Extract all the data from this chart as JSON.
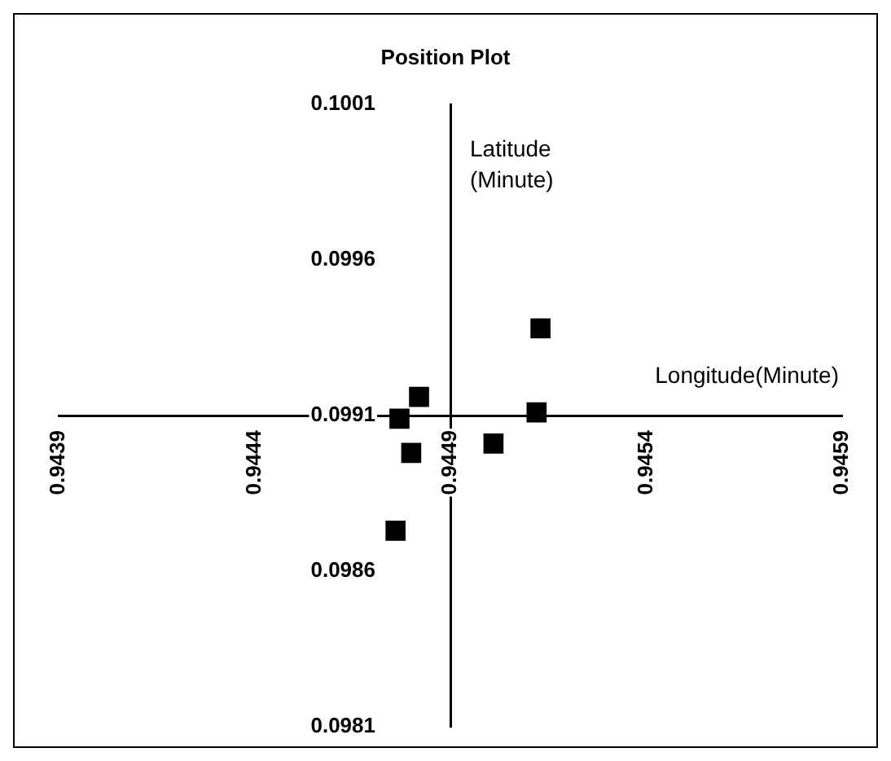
{
  "chart_data": {
    "type": "scatter",
    "title": "Position Plot",
    "xlabel": "Longitude(Minute)",
    "ylabel": "Latitude\n(Minute)",
    "x": [
      0.94513,
      0.94512,
      0.94501,
      0.94482,
      0.94477,
      0.9448,
      0.94476
    ],
    "series": [
      {
        "color": "#000000",
        "values": [
          0.09938,
          0.09911,
          0.09901,
          0.09916,
          0.09909,
          0.09898,
          0.09873
        ]
      }
    ],
    "xlim": [
      0.9439,
      0.9459
    ],
    "xticks": [
      0.9439,
      0.9444,
      0.9449,
      0.9454,
      0.9459
    ],
    "ylim": [
      0.0981,
      0.1001
    ],
    "yticks": [
      0.0981,
      0.0986,
      0.0991,
      0.0996,
      0.1001
    ],
    "marker": "square",
    "legend": false
  }
}
